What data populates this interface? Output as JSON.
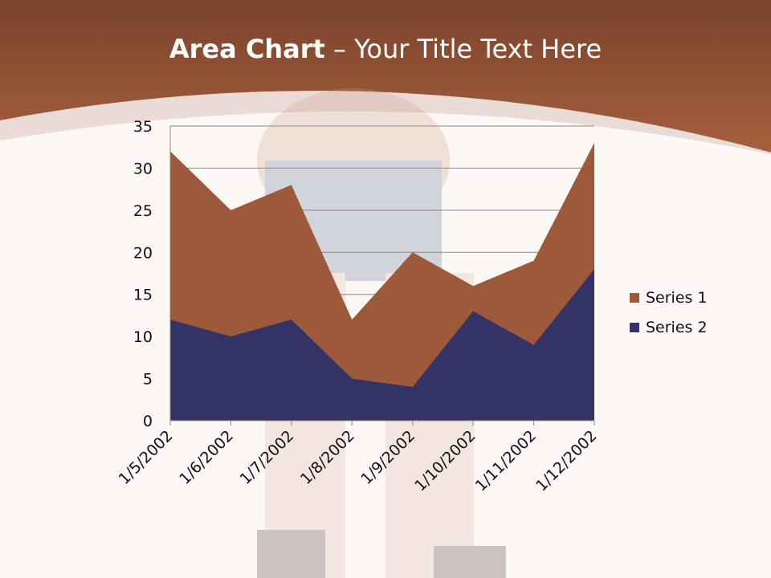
{
  "slide": {
    "title_bold": "Area Chart",
    "title_rest": " – Your Title Text Here"
  },
  "chart_data": {
    "type": "area",
    "title": "",
    "categories": [
      "1/5/2002",
      "1/6/2002",
      "1/7/2002",
      "1/8/2002",
      "1/9/2002",
      "1/10/2002",
      "1/11/2002",
      "1/12/2002"
    ],
    "series": [
      {
        "name": "Series 1",
        "color": "#9c5a3a",
        "values": [
          32,
          25,
          28,
          12,
          20,
          16,
          19,
          33
        ]
      },
      {
        "name": "Series 2",
        "color": "#333366",
        "values": [
          12,
          10,
          12,
          5,
          4,
          13,
          9,
          18
        ]
      }
    ],
    "ylim": [
      0,
      35
    ],
    "yticks": [
      0,
      5,
      10,
      15,
      20,
      25,
      30,
      35
    ],
    "grid": true,
    "legend": "right"
  },
  "colors": {
    "header": "#8a4a2e",
    "background": "#fcf8f5"
  }
}
